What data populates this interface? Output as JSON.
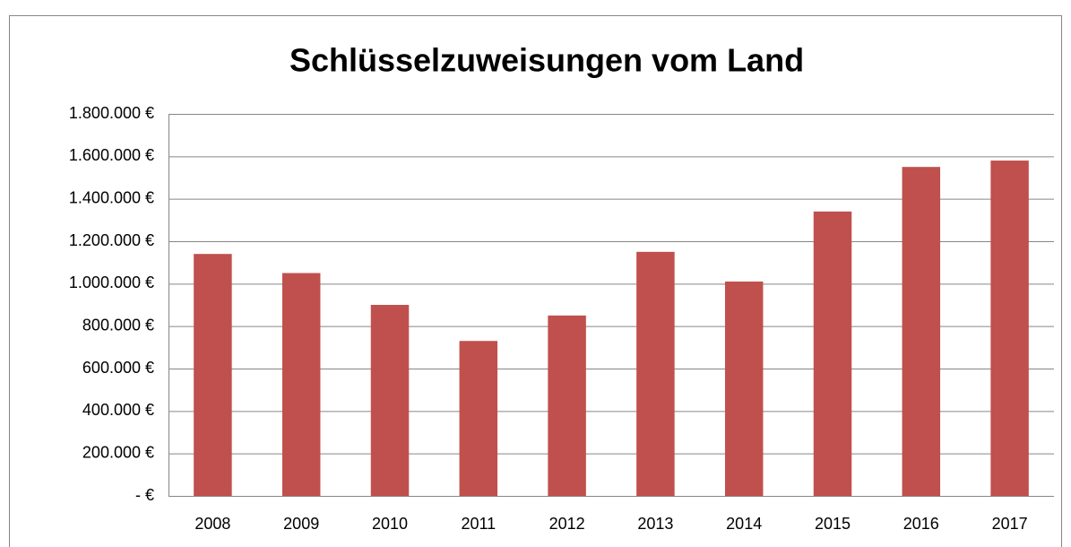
{
  "chart_data": {
    "type": "bar",
    "title": "Schlüsselzuweisungen vom Land",
    "categories": [
      "2008",
      "2009",
      "2010",
      "2011",
      "2012",
      "2013",
      "2014",
      "2015",
      "2016",
      "2017"
    ],
    "values": [
      1140000,
      1050000,
      900000,
      730000,
      850000,
      1150000,
      1010000,
      1340000,
      1550000,
      1580000
    ],
    "color": "#c0504d",
    "ylim": [
      0,
      1800000
    ],
    "yticks": [
      {
        "value": 0,
        "label": "-   €"
      },
      {
        "value": 200000,
        "label": "200.000 €"
      },
      {
        "value": 400000,
        "label": "400.000 €"
      },
      {
        "value": 600000,
        "label": "600.000 €"
      },
      {
        "value": 800000,
        "label": "800.000 €"
      },
      {
        "value": 1000000,
        "label": "1.000.000 €"
      },
      {
        "value": 1200000,
        "label": "1.200.000 €"
      },
      {
        "value": 1400000,
        "label": "1.400.000 €"
      },
      {
        "value": 1600000,
        "label": "1.600.000 €"
      },
      {
        "value": 1800000,
        "label": "1.800.000 €"
      }
    ],
    "grid": true
  }
}
